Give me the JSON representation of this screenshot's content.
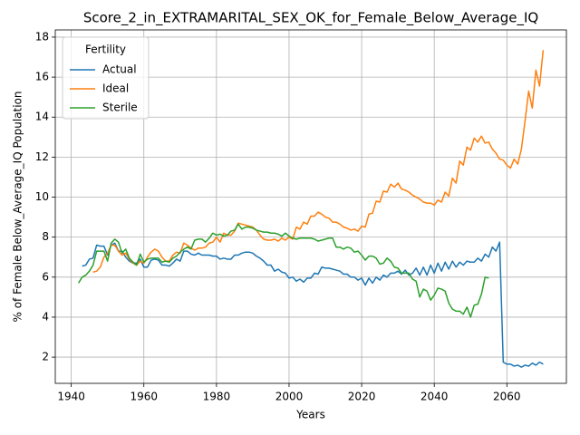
{
  "chart_data": {
    "type": "line",
    "title": "Score_2_in_EXTRAMARITAL_SEX_OK_for_Female_Below_Average_IQ",
    "x_label": "Years",
    "y_label": "% of Female Below_Average_IQ Population",
    "legend_title": "Fertility",
    "legend": "upper left",
    "grid": true,
    "x": [
      1942,
      1943,
      1944,
      1945,
      1946,
      1947,
      1948,
      1949,
      1950,
      1951,
      1952,
      1953,
      1954,
      1955,
      1956,
      1957,
      1958,
      1959,
      1960,
      1961,
      1962,
      1963,
      1964,
      1965,
      1966,
      1967,
      1968,
      1969,
      1970,
      1971,
      1972,
      1973,
      1974,
      1975,
      1976,
      1977,
      1978,
      1979,
      1980,
      1981,
      1982,
      1983,
      1984,
      1985,
      1986,
      1987,
      1988,
      1989,
      1990,
      1991,
      1992,
      1993,
      1994,
      1995,
      1996,
      1997,
      1998,
      1999,
      2000,
      2001,
      2002,
      2003,
      2004,
      2005,
      2006,
      2007,
      2008,
      2009,
      2010,
      2011,
      2012,
      2013,
      2014,
      2015,
      2016,
      2017,
      2018,
      2019,
      2020,
      2021,
      2022,
      2023,
      2024,
      2025,
      2026,
      2027,
      2028,
      2029,
      2030,
      2031,
      2032,
      2033,
      2034,
      2035,
      2036,
      2037,
      2038,
      2039,
      2040,
      2041,
      2042,
      2043,
      2044,
      2045,
      2046,
      2047,
      2048,
      2049,
      2050,
      2051,
      2052,
      2053,
      2054,
      2055,
      2056,
      2057,
      2058,
      2059,
      2060,
      2061,
      2062,
      2063,
      2064,
      2065,
      2066,
      2067,
      2068,
      2069,
      2070
    ],
    "series": [
      {
        "name": "Actual",
        "color": "#1f77b4",
        "values": [
          null,
          6.55,
          6.6,
          6.9,
          6.95,
          7.6,
          7.55,
          7.55,
          7.1,
          7.6,
          7.7,
          7.3,
          7.3,
          7.0,
          6.8,
          6.7,
          6.7,
          6.9,
          6.5,
          6.5,
          6.85,
          6.9,
          6.85,
          6.6,
          6.6,
          6.55,
          6.7,
          6.9,
          6.8,
          7.3,
          7.3,
          7.15,
          7.1,
          7.2,
          7.1,
          7.1,
          7.1,
          7.05,
          7.05,
          6.9,
          6.95,
          6.9,
          6.9,
          7.1,
          7.1,
          7.2,
          7.25,
          7.25,
          7.2,
          7.05,
          6.95,
          6.8,
          6.6,
          6.6,
          6.3,
          6.4,
          6.25,
          6.2,
          5.95,
          6.0,
          5.8,
          5.9,
          5.75,
          5.95,
          5.95,
          6.2,
          6.15,
          6.5,
          6.45,
          6.45,
          6.4,
          6.35,
          6.3,
          6.15,
          6.15,
          6.0,
          6.0,
          5.85,
          5.95,
          5.6,
          5.95,
          5.7,
          6.0,
          5.85,
          6.1,
          6.0,
          6.2,
          6.2,
          6.3,
          6.15,
          6.35,
          6.1,
          6.2,
          6.45,
          6.1,
          6.5,
          6.1,
          6.6,
          6.2,
          6.7,
          6.3,
          6.75,
          6.4,
          6.8,
          6.5,
          6.75,
          6.6,
          6.8,
          6.75,
          6.75,
          6.95,
          6.8,
          7.15,
          7.0,
          7.5,
          7.3,
          7.75,
          1.75,
          1.65,
          1.65,
          1.55,
          1.6,
          1.5,
          1.6,
          1.55,
          1.7,
          1.6,
          1.75,
          1.65
        ]
      },
      {
        "name": "Ideal",
        "color": "#ff7f0e",
        "values": [
          null,
          null,
          null,
          null,
          6.25,
          6.3,
          6.5,
          7.0,
          7.2,
          7.6,
          7.6,
          7.3,
          7.1,
          7.2,
          6.9,
          6.7,
          6.6,
          6.8,
          6.7,
          7.0,
          7.25,
          7.4,
          7.3,
          7.0,
          6.8,
          6.8,
          7.1,
          7.25,
          7.2,
          7.7,
          7.6,
          7.45,
          7.35,
          7.45,
          7.45,
          7.5,
          7.7,
          7.75,
          8.0,
          7.75,
          8.2,
          8.1,
          8.1,
          8.3,
          8.7,
          8.65,
          8.6,
          8.55,
          8.5,
          8.35,
          8.1,
          7.9,
          7.85,
          7.85,
          7.9,
          7.8,
          7.95,
          7.85,
          8.0,
          7.9,
          8.5,
          8.4,
          8.75,
          8.65,
          9.05,
          9.05,
          9.25,
          9.15,
          9.0,
          8.95,
          8.75,
          8.75,
          8.65,
          8.5,
          8.45,
          8.35,
          8.4,
          8.3,
          8.55,
          8.5,
          9.15,
          9.2,
          9.8,
          9.75,
          10.3,
          10.25,
          10.65,
          10.5,
          10.7,
          10.4,
          10.35,
          10.25,
          10.1,
          10.0,
          9.9,
          9.75,
          9.7,
          9.7,
          9.6,
          9.85,
          9.75,
          10.25,
          10.05,
          10.95,
          10.7,
          11.8,
          11.6,
          12.5,
          12.35,
          12.95,
          12.75,
          13.05,
          12.7,
          12.75,
          12.4,
          12.2,
          11.9,
          11.85,
          11.6,
          11.45,
          11.9,
          11.65,
          12.4,
          13.8,
          15.3,
          14.45,
          16.35,
          15.55,
          17.35
        ]
      },
      {
        "name": "Sterile",
        "color": "#2ca02c",
        "values": [
          5.7,
          6.0,
          6.1,
          6.3,
          6.6,
          7.3,
          7.3,
          7.3,
          6.8,
          7.7,
          7.9,
          7.75,
          7.2,
          7.4,
          6.95,
          6.75,
          6.6,
          7.15,
          6.75,
          6.9,
          6.95,
          6.95,
          6.95,
          6.75,
          6.8,
          6.75,
          6.95,
          7.05,
          7.25,
          7.4,
          7.5,
          7.4,
          7.85,
          7.9,
          7.9,
          7.75,
          7.95,
          8.2,
          8.1,
          8.15,
          8.05,
          8.1,
          8.3,
          8.35,
          8.65,
          8.4,
          8.5,
          8.5,
          8.45,
          8.35,
          8.3,
          8.25,
          8.25,
          8.2,
          8.2,
          8.15,
          8.05,
          8.2,
          8.05,
          7.95,
          7.9,
          7.95,
          7.95,
          7.95,
          7.95,
          7.9,
          7.8,
          7.85,
          7.9,
          7.95,
          7.95,
          7.5,
          7.5,
          7.4,
          7.5,
          7.45,
          7.25,
          7.3,
          7.1,
          6.85,
          7.05,
          7.05,
          6.95,
          6.65,
          6.7,
          6.95,
          6.8,
          6.5,
          6.45,
          6.2,
          6.2,
          6.2,
          5.9,
          5.8,
          5.0,
          5.4,
          5.3,
          4.85,
          5.1,
          5.45,
          5.4,
          5.3,
          4.7,
          4.4,
          4.3,
          4.3,
          4.15,
          4.5,
          4.0,
          4.6,
          4.65,
          5.15,
          6.0,
          5.95,
          null,
          null,
          null,
          null,
          null,
          null,
          null,
          null,
          null,
          null,
          null,
          null,
          null,
          null,
          null
        ]
      }
    ],
    "xlim": [
      1935.6,
      2076.4
    ],
    "xticks": [
      1940,
      1960,
      1980,
      2000,
      2020,
      2040,
      2060
    ],
    "ylim": [
      0.69,
      18.36
    ],
    "yticks": [
      2,
      4,
      6,
      8,
      10,
      12,
      14,
      16,
      18
    ]
  }
}
